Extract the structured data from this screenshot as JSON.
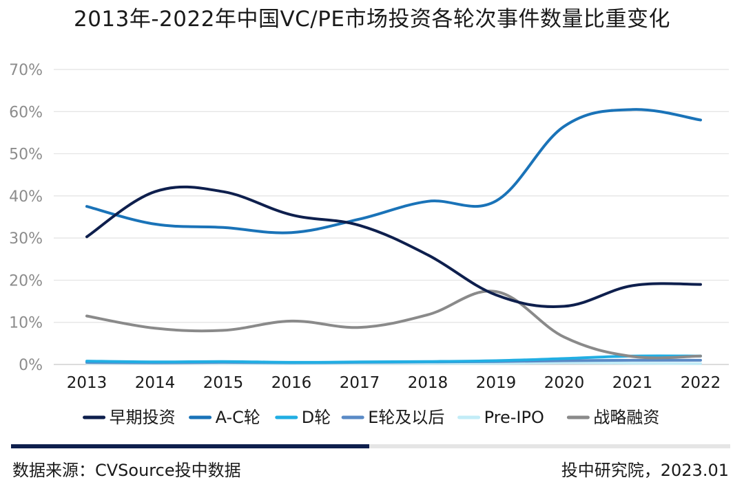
{
  "title": "2013年-2022年中国VC/PE市场投资各轮次事件数量比重变化",
  "chart_data": {
    "type": "line",
    "categories": [
      "2013",
      "2014",
      "2015",
      "2016",
      "2017",
      "2018",
      "2019",
      "2020",
      "2021",
      "2022"
    ],
    "y_ticks": [
      "0%",
      "10%",
      "20%",
      "30%",
      "40%",
      "50%",
      "60%",
      "70%"
    ],
    "ylim": [
      0,
      70
    ],
    "grid": true,
    "legend_position": "bottom",
    "series": [
      {
        "name": "早期投资",
        "color": "#0e1f4d",
        "values": [
          30.3,
          41.0,
          41.0,
          35.5,
          33.0,
          26.0,
          16.5,
          13.8,
          18.7,
          19.0
        ]
      },
      {
        "name": "A-C轮",
        "color": "#1a73b8",
        "values": [
          37.5,
          33.3,
          32.5,
          31.3,
          34.5,
          38.7,
          38.8,
          56.5,
          60.5,
          58.0
        ]
      },
      {
        "name": "D轮",
        "color": "#21aee3",
        "values": [
          0.8,
          0.6,
          0.7,
          0.5,
          0.6,
          0.7,
          0.9,
          1.4,
          2.0,
          2.0
        ]
      },
      {
        "name": "E轮及以后",
        "color": "#5a8ac6",
        "values": [
          0.5,
          0.4,
          0.5,
          0.4,
          0.5,
          0.6,
          0.7,
          0.9,
          1.0,
          1.0
        ]
      },
      {
        "name": "Pre-IPO",
        "color": "#c2ecf7",
        "values": [
          0.3,
          0.3,
          0.3,
          0.2,
          0.3,
          0.3,
          0.3,
          0.4,
          0.3,
          0.2
        ]
      },
      {
        "name": "战略融资",
        "color": "#8a8a8a",
        "values": [
          11.5,
          8.6,
          8.1,
          10.3,
          8.8,
          11.8,
          17.3,
          6.5,
          1.9,
          2.0
        ]
      }
    ]
  },
  "footer": {
    "source": "数据来源：CVSource投中数据",
    "credit": "投中研究院，2023.01"
  }
}
